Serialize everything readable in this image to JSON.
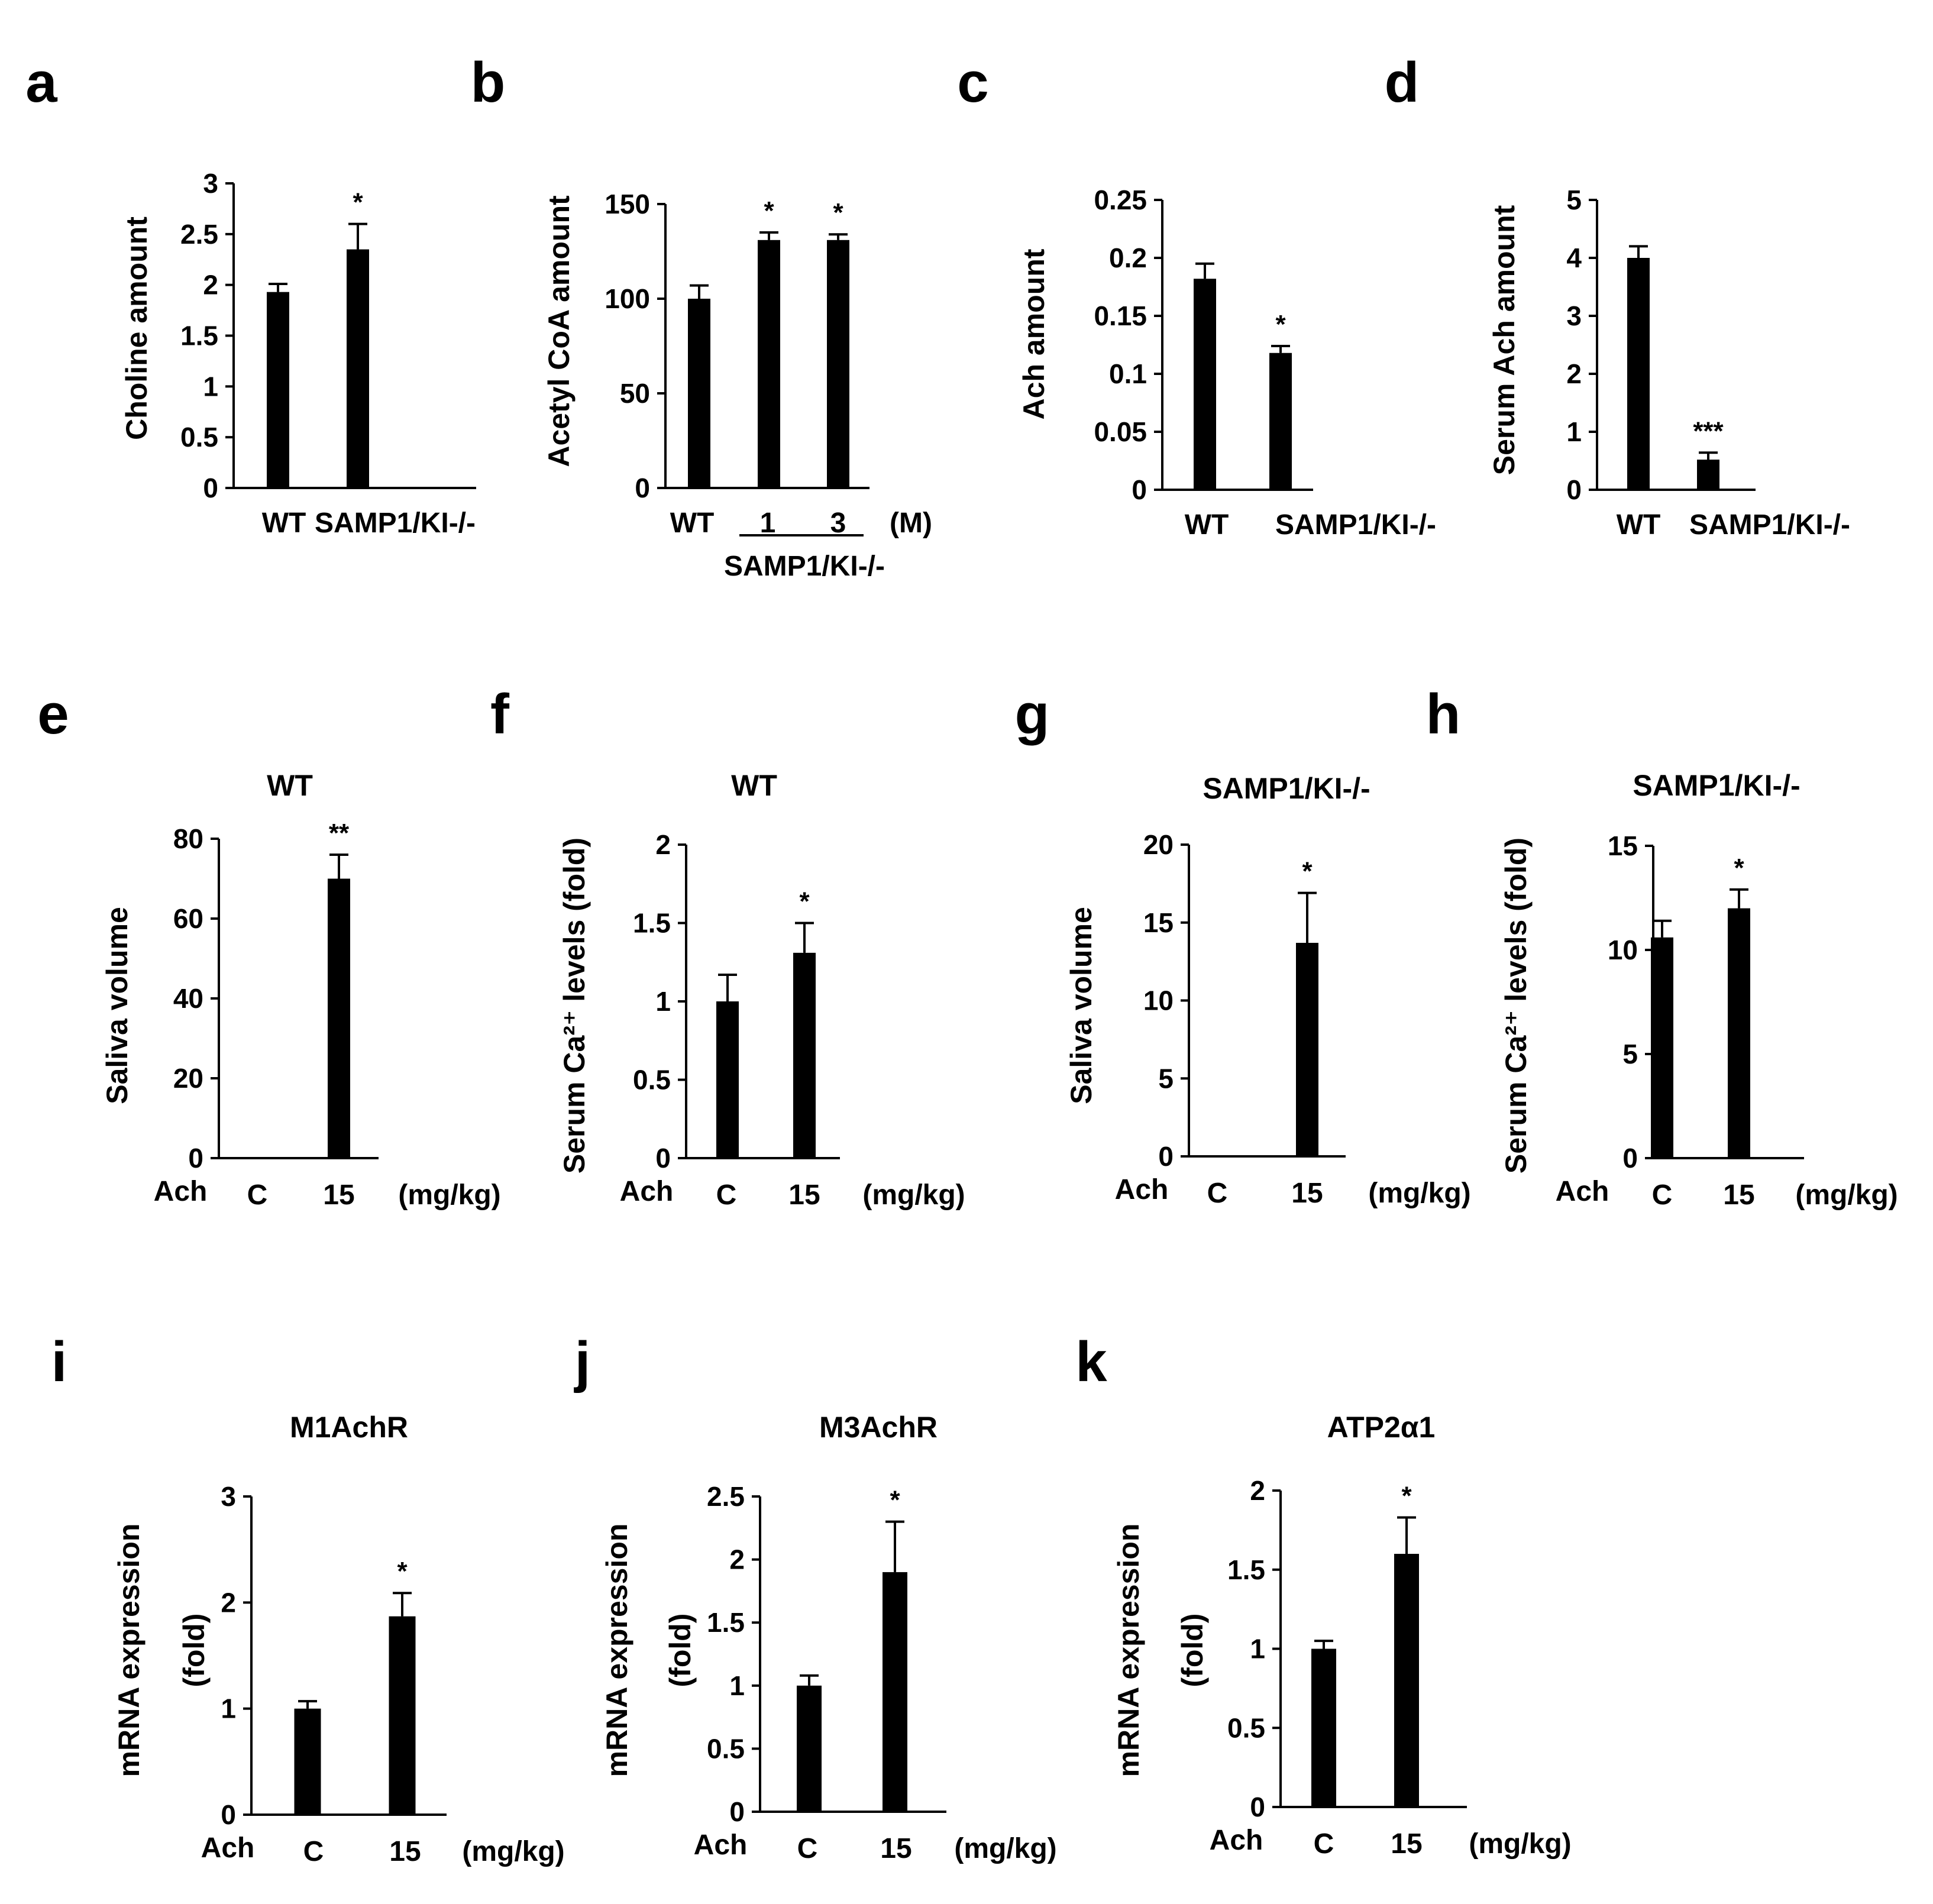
{
  "figure": {
    "panels": [
      {
        "letter": "a",
        "chart_data": {
          "type": "bar",
          "title": "",
          "ylabel": "Choline amount",
          "yticks": [
            "0",
            "0.5",
            "1",
            "1.5",
            "2",
            "2.5",
            "3"
          ],
          "ylim": [
            0,
            3
          ],
          "categories": [
            "WT",
            "SAMP1/KI-/-"
          ],
          "values": [
            1.93,
            2.35
          ],
          "errors": [
            0.08,
            0.25
          ],
          "significance": [
            "",
            "*"
          ],
          "prefix": "",
          "unit": "",
          "group_label": ""
        }
      },
      {
        "letter": "b",
        "chart_data": {
          "type": "bar",
          "title": "",
          "ylabel": "Acetyl CoA amount",
          "yticks": [
            "0",
            "50",
            "100",
            "150"
          ],
          "ylim": [
            0,
            150
          ],
          "categories": [
            "WT",
            "1",
            "3"
          ],
          "values": [
            100,
            131,
            131
          ],
          "errors": [
            7,
            4,
            3
          ],
          "significance": [
            "",
            "*",
            "*"
          ],
          "prefix": "",
          "unit": "(M)",
          "group_label": "SAMP1/KI-/-"
        }
      },
      {
        "letter": "c",
        "chart_data": {
          "type": "bar",
          "title": "",
          "ylabel": "Ach amount",
          "yticks": [
            "0",
            "0.05",
            "0.1",
            "0.15",
            "0.2",
            "0.25"
          ],
          "ylim": [
            0,
            0.25
          ],
          "categories": [
            "WT",
            "SAMP1/KI-/-"
          ],
          "values": [
            0.182,
            0.118
          ],
          "errors": [
            0.013,
            0.006
          ],
          "significance": [
            "",
            "*"
          ],
          "prefix": "",
          "unit": "",
          "group_label": ""
        }
      },
      {
        "letter": "d",
        "chart_data": {
          "type": "bar",
          "title": "",
          "ylabel": "Serum Ach amount",
          "yticks": [
            "0",
            "1",
            "2",
            "3",
            "4",
            "5"
          ],
          "ylim": [
            0,
            5
          ],
          "categories": [
            "WT",
            "SAMP1/KI-/-"
          ],
          "values": [
            4.0,
            0.52
          ],
          "errors": [
            0.2,
            0.12
          ],
          "significance": [
            "",
            "***"
          ],
          "prefix": "",
          "unit": "",
          "group_label": ""
        }
      },
      {
        "letter": "e",
        "chart_data": {
          "type": "bar",
          "title": "WT",
          "ylabel": "Saliva volume",
          "yticks": [
            "0",
            "20",
            "40",
            "60",
            "80"
          ],
          "ylim": [
            0,
            80
          ],
          "categories": [
            "C",
            "15"
          ],
          "values": [
            0,
            70
          ],
          "errors": [
            0,
            6
          ],
          "significance": [
            "",
            "**"
          ],
          "prefix": "Ach",
          "unit": "(mg/kg)",
          "group_label": ""
        }
      },
      {
        "letter": "f",
        "chart_data": {
          "type": "bar",
          "title": "WT",
          "ylabel": "Serum Ca²⁺ levels (fold)",
          "yticks": [
            "0",
            "0.5",
            "1",
            "1.5",
            "2"
          ],
          "ylim": [
            0,
            2
          ],
          "categories": [
            "C",
            "15"
          ],
          "values": [
            1.0,
            1.31
          ],
          "errors": [
            0.17,
            0.19
          ],
          "significance": [
            "",
            "*"
          ],
          "prefix": "Ach",
          "unit": "(mg/kg)",
          "group_label": ""
        }
      },
      {
        "letter": "g",
        "chart_data": {
          "type": "bar",
          "title": "SAMP1/KI-/-",
          "ylabel": "Saliva volume",
          "yticks": [
            "0",
            "5",
            "10",
            "15",
            "20"
          ],
          "ylim": [
            0,
            20
          ],
          "categories": [
            "C",
            "15"
          ],
          "values": [
            0,
            13.7
          ],
          "errors": [
            0,
            3.2
          ],
          "significance": [
            "",
            "*"
          ],
          "prefix": "Ach",
          "unit": "(mg/kg)",
          "group_label": ""
        }
      },
      {
        "letter": "h",
        "chart_data": {
          "type": "bar",
          "title": "SAMP1/KI-/-",
          "ylabel": "Serum Ca²⁺ levels (fold)",
          "yticks": [
            "0",
            "5",
            "10",
            "15"
          ],
          "ylim": [
            0,
            15
          ],
          "categories": [
            "C",
            "15"
          ],
          "values": [
            10.6,
            12.0
          ],
          "errors": [
            0.8,
            0.9
          ],
          "significance": [
            "",
            "*"
          ],
          "prefix": "Ach",
          "unit": "(mg/kg)",
          "group_label": ""
        }
      },
      {
        "letter": "i",
        "chart_data": {
          "type": "bar",
          "title": "M1AchR",
          "ylabel": [
            "mRNA expression",
            "(fold)"
          ],
          "yticks": [
            "0",
            "1",
            "2",
            "3"
          ],
          "ylim": [
            0,
            3
          ],
          "categories": [
            "C",
            "15"
          ],
          "values": [
            1.0,
            1.87
          ],
          "errors": [
            0.07,
            0.22
          ],
          "significance": [
            "",
            "*"
          ],
          "prefix": "Ach",
          "unit": "(mg/kg)",
          "group_label": ""
        }
      },
      {
        "letter": "j",
        "chart_data": {
          "type": "bar",
          "title": "M3AchR",
          "ylabel": [
            "mRNA expression",
            "(fold)"
          ],
          "yticks": [
            "0",
            "0.5",
            "1",
            "1.5",
            "2",
            "2.5"
          ],
          "ylim": [
            0,
            2.5
          ],
          "categories": [
            "C",
            "15"
          ],
          "values": [
            1.0,
            1.9
          ],
          "errors": [
            0.08,
            0.4
          ],
          "significance": [
            "",
            "*"
          ],
          "prefix": "Ach",
          "unit": "(mg/kg)",
          "group_label": ""
        }
      },
      {
        "letter": "k",
        "chart_data": {
          "type": "bar",
          "title": "ATP2α1",
          "ylabel": [
            "mRNA expression",
            "(fold)"
          ],
          "yticks": [
            "0",
            "0.5",
            "1",
            "1.5",
            "2"
          ],
          "ylim": [
            0,
            2
          ],
          "categories": [
            "C",
            "15"
          ],
          "values": [
            1.0,
            1.6
          ],
          "errors": [
            0.05,
            0.23
          ],
          "significance": [
            "",
            "*"
          ],
          "prefix": "Ach",
          "unit": "(mg/kg)",
          "group_label": ""
        }
      }
    ]
  }
}
